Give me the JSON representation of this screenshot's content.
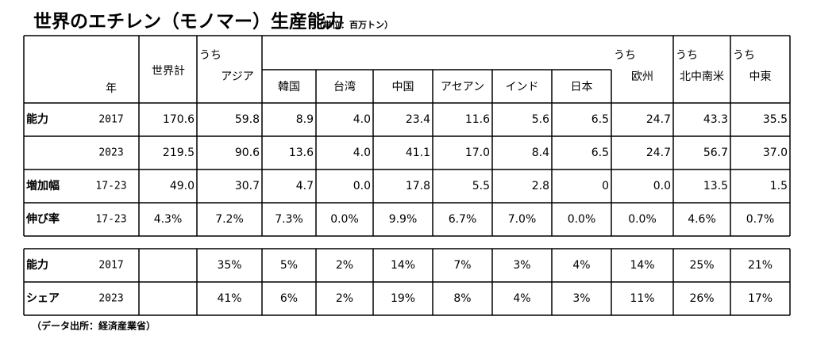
{
  "title": "世界のエチレン（モノマー）生産能力",
  "unit": "（単位：百万トン）",
  "header": {
    "year": "年",
    "world": "世界計",
    "uchi": "うち",
    "groups": [
      "アジア",
      "欧州",
      "北中南米",
      "中東"
    ],
    "asia_sub": [
      "韓国",
      "台湾",
      "中国",
      "アセアン",
      "インド",
      "日本"
    ]
  },
  "table": {
    "rows": [
      {
        "label": "能力",
        "year": "2017",
        "values": [
          "170.6",
          "59.8",
          "8.9",
          "4.0",
          "23.4",
          "11.6",
          "5.6",
          "6.5",
          "24.7",
          "43.3",
          "35.5"
        ]
      },
      {
        "year": "2023",
        "values": [
          "219.5",
          "90.6",
          "13.6",
          "4.0",
          "41.1",
          "17.0",
          "8.4",
          "6.5",
          "24.7",
          "56.7",
          "37.0"
        ]
      },
      {
        "label": "増加幅",
        "year": "17-23",
        "values": [
          "49.0",
          "30.7",
          "4.7",
          "0.0",
          "17.8",
          "5.5",
          "2.8",
          "0",
          "0.0",
          "13.5",
          "1.5"
        ]
      },
      {
        "label": "伸び率",
        "year": "17-23",
        "values": [
          "4.3%",
          "7.2%",
          "7.3%",
          "0.0%",
          "9.9%",
          "6.7%",
          "7.0%",
          "0.0%",
          "0.0%",
          "4.6%",
          "0.7%"
        ]
      }
    ]
  },
  "share_table": {
    "rows": [
      {
        "label": "能力",
        "year": "2017",
        "values": [
          "35%",
          "5%",
          "2%",
          "14%",
          "7%",
          "3%",
          "4%",
          "14%",
          "25%",
          "21%"
        ]
      },
      {
        "label": "シェア",
        "year": "2023",
        "values": [
          "41%",
          "6%",
          "2%",
          "19%",
          "8%",
          "4%",
          "3%",
          "11%",
          "26%",
          "17%"
        ]
      }
    ]
  },
  "source": "（データ出所：経済産業省）"
}
